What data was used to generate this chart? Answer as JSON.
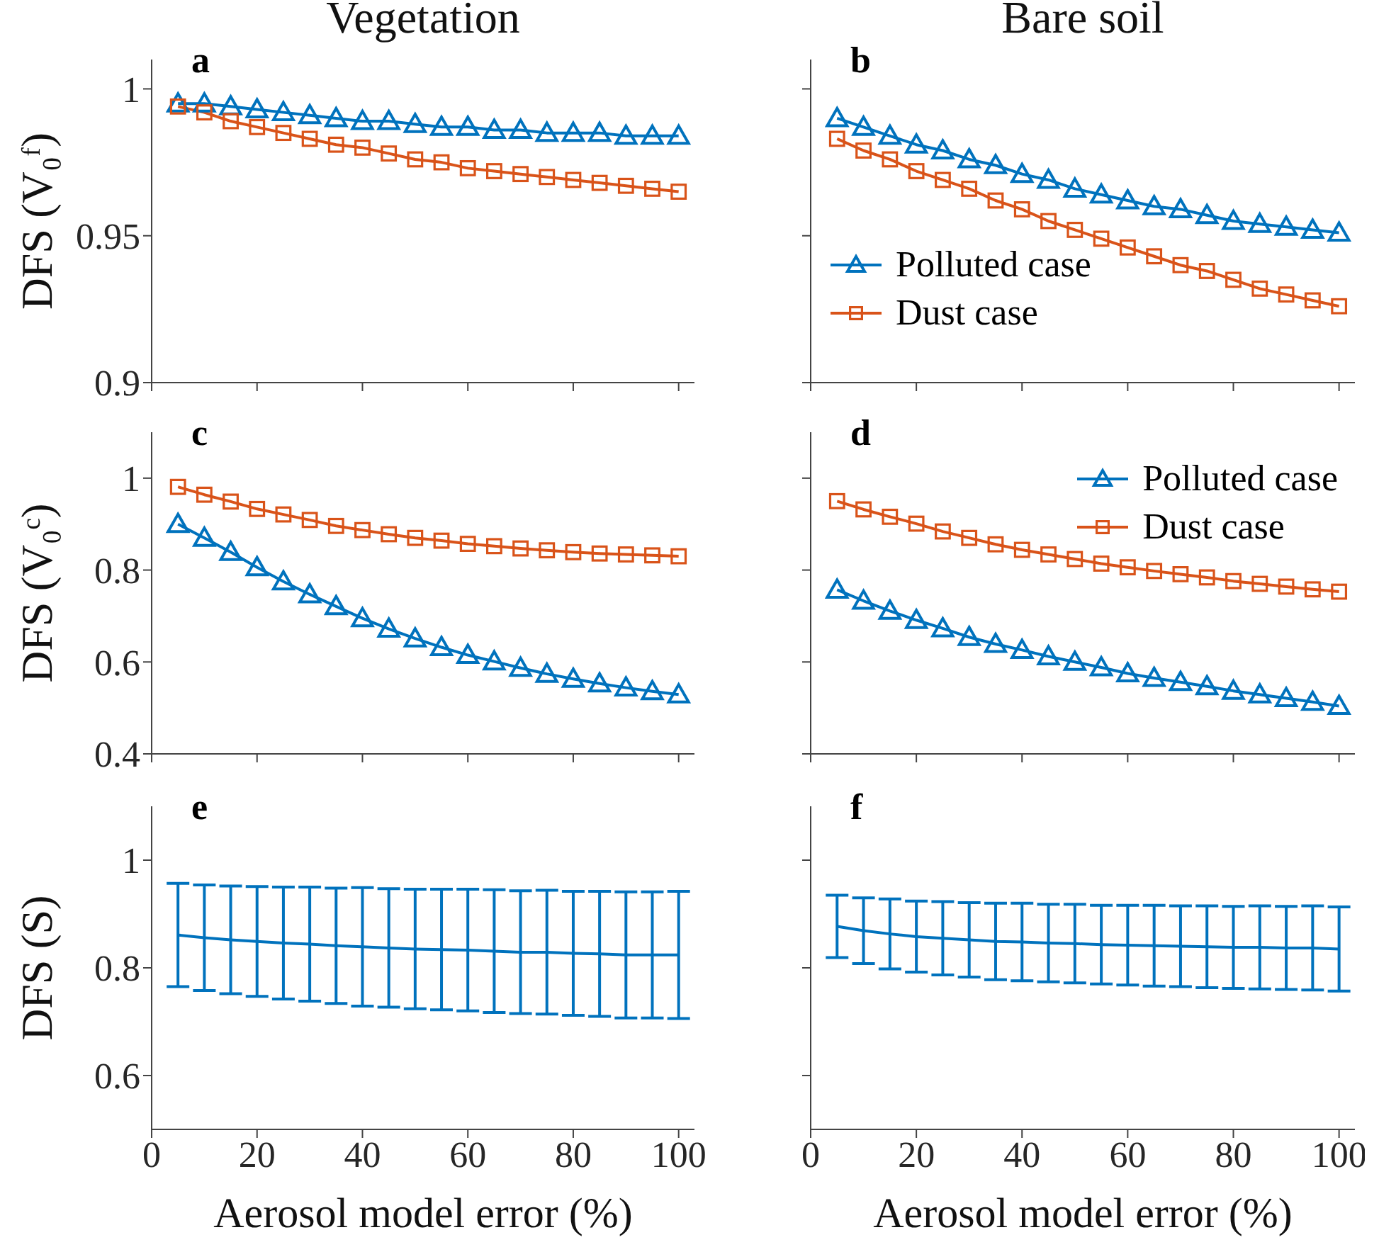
{
  "chart_data": [
    {
      "type": "line",
      "title": "Vegetation",
      "ylabel": "DFS (V₀ᶠ)",
      "annotations": [
        "a"
      ],
      "legend": false,
      "tick_labels": "y",
      "xlim": [
        0,
        103
      ],
      "xticks": [
        0,
        20,
        40,
        60,
        80,
        100
      ],
      "ylim": [
        0.9,
        1.01
      ],
      "yticks": [
        0.9,
        0.95,
        1
      ],
      "x": [
        5,
        10,
        15,
        20,
        25,
        30,
        35,
        40,
        45,
        50,
        55,
        60,
        65,
        70,
        75,
        80,
        85,
        90,
        95,
        100
      ],
      "series": [
        {
          "color": "#0072bd",
          "marker": "triangle",
          "values": [
            0.995,
            0.995,
            0.994,
            0.993,
            0.992,
            0.991,
            0.99,
            0.989,
            0.989,
            0.988,
            0.987,
            0.987,
            0.986,
            0.986,
            0.985,
            0.985,
            0.985,
            0.984,
            0.984,
            0.984
          ]
        },
        {
          "color": "#d95319",
          "marker": "square",
          "values": [
            0.994,
            0.992,
            0.989,
            0.987,
            0.985,
            0.983,
            0.981,
            0.98,
            0.978,
            0.976,
            0.975,
            0.973,
            0.972,
            0.971,
            0.97,
            0.969,
            0.968,
            0.967,
            0.966,
            0.965
          ]
        }
      ]
    },
    {
      "type": "line",
      "title": "Bare soil",
      "annotations": [
        "b"
      ],
      "legend": "bottom left",
      "tick_labels": false,
      "xlim": [
        0,
        103
      ],
      "xticks": [
        0,
        20,
        40,
        60,
        80,
        100
      ],
      "ylim": [
        0.9,
        1.01
      ],
      "yticks": [
        0.9,
        0.95,
        1
      ],
      "x": [
        5,
        10,
        15,
        20,
        25,
        30,
        35,
        40,
        45,
        50,
        55,
        60,
        65,
        70,
        75,
        80,
        85,
        90,
        95,
        100
      ],
      "series": [
        {
          "name": "Polluted case",
          "color": "#0072bd",
          "marker": "triangle",
          "values": [
            0.99,
            0.987,
            0.984,
            0.981,
            0.979,
            0.976,
            0.974,
            0.971,
            0.969,
            0.966,
            0.964,
            0.962,
            0.96,
            0.959,
            0.957,
            0.955,
            0.954,
            0.953,
            0.952,
            0.951
          ]
        },
        {
          "name": "Dust case",
          "color": "#d95319",
          "marker": "square",
          "values": [
            0.983,
            0.979,
            0.976,
            0.972,
            0.969,
            0.966,
            0.962,
            0.959,
            0.955,
            0.952,
            0.949,
            0.946,
            0.943,
            0.94,
            0.938,
            0.935,
            0.932,
            0.93,
            0.928,
            0.926
          ]
        }
      ]
    },
    {
      "type": "line",
      "ylabel": "DFS (V₀ᶜ)",
      "annotations": [
        "c"
      ],
      "legend": false,
      "tick_labels": "y",
      "xlim": [
        0,
        103
      ],
      "xticks": [
        0,
        20,
        40,
        60,
        80,
        100
      ],
      "ylim": [
        0.4,
        1.1
      ],
      "yticks": [
        0.4,
        0.6,
        0.8,
        1
      ],
      "x": [
        5,
        10,
        15,
        20,
        25,
        30,
        35,
        40,
        45,
        50,
        55,
        60,
        65,
        70,
        75,
        80,
        85,
        90,
        95,
        100
      ],
      "series": [
        {
          "color": "#0072bd",
          "marker": "triangle",
          "values": [
            0.9,
            0.87,
            0.839,
            0.806,
            0.775,
            0.747,
            0.721,
            0.695,
            0.672,
            0.651,
            0.632,
            0.615,
            0.601,
            0.587,
            0.574,
            0.563,
            0.553,
            0.544,
            0.536,
            0.529
          ]
        },
        {
          "color": "#d95319",
          "marker": "square",
          "values": [
            0.981,
            0.964,
            0.949,
            0.933,
            0.921,
            0.909,
            0.896,
            0.887,
            0.878,
            0.87,
            0.864,
            0.857,
            0.852,
            0.847,
            0.843,
            0.839,
            0.836,
            0.834,
            0.832,
            0.83
          ]
        }
      ]
    },
    {
      "type": "line",
      "annotations": [
        "d"
      ],
      "legend": "top right",
      "tick_labels": false,
      "xlim": [
        0,
        103
      ],
      "xticks": [
        0,
        20,
        40,
        60,
        80,
        100
      ],
      "ylim": [
        0.4,
        1.1
      ],
      "yticks": [
        0.4,
        0.6,
        0.8,
        1
      ],
      "x": [
        5,
        10,
        15,
        20,
        25,
        30,
        35,
        40,
        45,
        50,
        55,
        60,
        65,
        70,
        75,
        80,
        85,
        90,
        95,
        100
      ],
      "series": [
        {
          "name": "Polluted case",
          "color": "#0072bd",
          "marker": "triangle",
          "values": [
            0.757,
            0.733,
            0.711,
            0.691,
            0.673,
            0.654,
            0.639,
            0.626,
            0.612,
            0.6,
            0.588,
            0.575,
            0.565,
            0.556,
            0.547,
            0.537,
            0.529,
            0.521,
            0.513,
            0.504
          ]
        },
        {
          "name": "Dust case",
          "color": "#d95319",
          "marker": "square",
          "values": [
            0.95,
            0.932,
            0.916,
            0.901,
            0.884,
            0.87,
            0.856,
            0.844,
            0.834,
            0.824,
            0.814,
            0.806,
            0.798,
            0.791,
            0.784,
            0.776,
            0.77,
            0.764,
            0.758,
            0.753
          ]
        }
      ]
    },
    {
      "type": "line",
      "ylabel": "DFS (S)",
      "xlabel": "Aerosol model error (%)",
      "annotations": [
        "e"
      ],
      "legend": false,
      "xlim": [
        0,
        103
      ],
      "xticks": [
        0,
        20,
        40,
        60,
        80,
        100
      ],
      "ylim": [
        0.5,
        1.1
      ],
      "yticks": [
        0.6,
        0.8,
        1
      ],
      "x": [
        5,
        10,
        15,
        20,
        25,
        30,
        35,
        40,
        45,
        50,
        55,
        60,
        65,
        70,
        75,
        80,
        85,
        90,
        95,
        100
      ],
      "series": [
        {
          "color": "#0072bd",
          "marker": "none",
          "values": [
            0.861,
            0.856,
            0.852,
            0.849,
            0.846,
            0.844,
            0.841,
            0.839,
            0.837,
            0.835,
            0.834,
            0.833,
            0.831,
            0.829,
            0.829,
            0.827,
            0.826,
            0.824,
            0.824,
            0.824
          ],
          "errors": [
            0.096,
            0.098,
            0.1,
            0.102,
            0.104,
            0.106,
            0.107,
            0.11,
            0.11,
            0.111,
            0.112,
            0.113,
            0.114,
            0.114,
            0.115,
            0.115,
            0.116,
            0.117,
            0.117,
            0.118
          ]
        }
      ]
    },
    {
      "type": "line",
      "xlabel": "Aerosol model error (%)",
      "annotations": [
        "f"
      ],
      "legend": false,
      "tick_labels": "x",
      "xlim": [
        0,
        103
      ],
      "xticks": [
        0,
        20,
        40,
        60,
        80,
        100
      ],
      "ylim": [
        0.5,
        1.1
      ],
      "yticks": [
        0.6,
        0.8,
        1
      ],
      "x": [
        5,
        10,
        15,
        20,
        25,
        30,
        35,
        40,
        45,
        50,
        55,
        60,
        65,
        70,
        75,
        80,
        85,
        90,
        95,
        100
      ],
      "series": [
        {
          "color": "#0072bd",
          "marker": "none",
          "values": [
            0.877,
            0.869,
            0.863,
            0.858,
            0.855,
            0.852,
            0.849,
            0.848,
            0.846,
            0.845,
            0.843,
            0.842,
            0.841,
            0.84,
            0.839,
            0.838,
            0.838,
            0.837,
            0.837,
            0.835
          ],
          "errors": [
            0.058,
            0.061,
            0.065,
            0.066,
            0.068,
            0.069,
            0.071,
            0.072,
            0.072,
            0.073,
            0.073,
            0.074,
            0.075,
            0.075,
            0.076,
            0.076,
            0.077,
            0.077,
            0.078,
            0.078
          ]
        }
      ]
    }
  ]
}
